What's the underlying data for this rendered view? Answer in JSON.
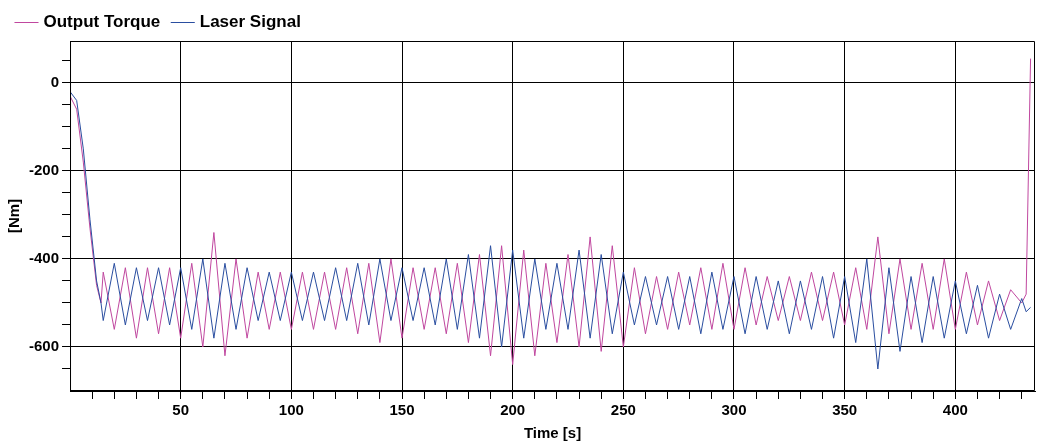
{
  "chart_data": {
    "type": "line",
    "xlabel": "Time [s]",
    "ylabel": "[Nm]",
    "legend": "top left",
    "grid": true,
    "xlim": [
      0,
      436
    ],
    "ylim": [
      -700,
      95
    ],
    "xticks": [
      {
        "value": 10,
        "label": null
      },
      {
        "value": 20,
        "label": null
      },
      {
        "value": 30,
        "label": null
      },
      {
        "value": 40,
        "label": null
      },
      50,
      {
        "value": 60,
        "label": null
      },
      {
        "value": 70,
        "label": null
      },
      {
        "value": 80,
        "label": null
      },
      {
        "value": 90,
        "label": null
      },
      100,
      {
        "value": 110,
        "label": null
      },
      {
        "value": 120,
        "label": null
      },
      {
        "value": 130,
        "label": null
      },
      {
        "value": 140,
        "label": null
      },
      150,
      {
        "value": 160,
        "label": null
      },
      {
        "value": 170,
        "label": null
      },
      {
        "value": 180,
        "label": null
      },
      {
        "value": 190,
        "label": null
      },
      200,
      {
        "value": 210,
        "label": null
      },
      {
        "value": 220,
        "label": null
      },
      {
        "value": 230,
        "label": null
      },
      {
        "value": 240,
        "label": null
      },
      250,
      {
        "value": 260,
        "label": null
      },
      {
        "value": 270,
        "label": null
      },
      {
        "value": 280,
        "label": null
      },
      {
        "value": 290,
        "label": null
      },
      300,
      {
        "value": 310,
        "label": null
      },
      {
        "value": 320,
        "label": null
      },
      {
        "value": 330,
        "label": null
      },
      {
        "value": 340,
        "label": null
      },
      350,
      {
        "value": 360,
        "label": null
      },
      {
        "value": 370,
        "label": null
      },
      {
        "value": 380,
        "label": null
      },
      {
        "value": 390,
        "label": null
      },
      400,
      {
        "value": 410,
        "label": null
      },
      {
        "value": 420,
        "label": null
      },
      {
        "value": 430,
        "label": null
      }
    ],
    "yticks": [
      {
        "value": -650,
        "label": null
      },
      -600,
      {
        "value": -550,
        "label": null
      },
      {
        "value": -500,
        "label": null
      },
      {
        "value": -450,
        "label": null
      },
      -400,
      {
        "value": -350,
        "label": null
      },
      {
        "value": -300,
        "label": null
      },
      {
        "value": -250,
        "label": null
      },
      -200,
      {
        "value": -150,
        "label": null
      },
      {
        "value": -100,
        "label": null
      },
      {
        "value": -50,
        "label": null
      },
      0,
      {
        "value": 50,
        "label": null
      }
    ],
    "series": [
      {
        "name": "Output Torque",
        "color": "#c0479f",
        "x": [
          0,
          3,
          6,
          9,
          12,
          14,
          15,
          20,
          25,
          30,
          35,
          40,
          45,
          50,
          55,
          60,
          65,
          70,
          75,
          80,
          85,
          90,
          95,
          100,
          105,
          110,
          115,
          120,
          125,
          130,
          135,
          140,
          145,
          150,
          155,
          160,
          165,
          170,
          175,
          180,
          185,
          190,
          195,
          200,
          205,
          210,
          215,
          220,
          225,
          230,
          235,
          240,
          245,
          250,
          255,
          260,
          265,
          270,
          275,
          280,
          285,
          290,
          295,
          300,
          305,
          310,
          315,
          320,
          325,
          330,
          335,
          340,
          345,
          350,
          355,
          360,
          365,
          370,
          375,
          380,
          385,
          390,
          395,
          400,
          405,
          410,
          415,
          420,
          425,
          430,
          432,
          434
        ],
        "values": [
          -30,
          -60,
          -180,
          -330,
          -460,
          -500,
          -430,
          -560,
          -420,
          -580,
          -420,
          -570,
          -420,
          -580,
          -410,
          -600,
          -340,
          -620,
          -400,
          -580,
          -430,
          -560,
          -430,
          -560,
          -430,
          -560,
          -430,
          -560,
          -420,
          -570,
          -410,
          -590,
          -400,
          -580,
          -420,
          -560,
          -420,
          -570,
          -410,
          -590,
          -390,
          -620,
          -370,
          -640,
          -380,
          -620,
          -410,
          -590,
          -390,
          -600,
          -350,
          -610,
          -370,
          -600,
          -420,
          -570,
          -440,
          -560,
          -430,
          -550,
          -420,
          -560,
          -410,
          -560,
          -420,
          -550,
          -440,
          -540,
          -440,
          -540,
          -430,
          -540,
          -430,
          -550,
          -420,
          -560,
          -350,
          -570,
          -400,
          -560,
          -410,
          -560,
          -400,
          -560,
          -430,
          -550,
          -450,
          -540,
          -470,
          -500,
          -480,
          55
        ]
      },
      {
        "name": "Laser Signal",
        "color": "#2a4ea0",
        "x": [
          0,
          3,
          6,
          9,
          12,
          14,
          15,
          20,
          25,
          30,
          35,
          40,
          45,
          50,
          55,
          60,
          65,
          70,
          75,
          80,
          85,
          90,
          95,
          100,
          105,
          110,
          115,
          120,
          125,
          130,
          135,
          140,
          145,
          150,
          155,
          160,
          165,
          170,
          175,
          180,
          185,
          190,
          195,
          200,
          205,
          210,
          215,
          220,
          225,
          230,
          235,
          240,
          245,
          250,
          255,
          260,
          265,
          270,
          275,
          280,
          285,
          290,
          295,
          300,
          305,
          310,
          315,
          320,
          325,
          330,
          335,
          340,
          345,
          350,
          355,
          360,
          365,
          370,
          375,
          380,
          385,
          390,
          395,
          400,
          405,
          410,
          415,
          420,
          425,
          430,
          432,
          434
        ],
        "values": [
          -20,
          -40,
          -150,
          -310,
          -450,
          -500,
          -540,
          -410,
          -550,
          -420,
          -540,
          -420,
          -550,
          -420,
          -560,
          -400,
          -580,
          -410,
          -560,
          -420,
          -540,
          -430,
          -540,
          -430,
          -540,
          -430,
          -540,
          -420,
          -540,
          -410,
          -550,
          -400,
          -540,
          -420,
          -540,
          -420,
          -550,
          -400,
          -560,
          -390,
          -580,
          -370,
          -600,
          -380,
          -580,
          -400,
          -560,
          -410,
          -560,
          -380,
          -580,
          -390,
          -570,
          -430,
          -550,
          -440,
          -550,
          -440,
          -560,
          -440,
          -570,
          -430,
          -560,
          -440,
          -570,
          -440,
          -560,
          -450,
          -570,
          -450,
          -560,
          -440,
          -580,
          -440,
          -590,
          -400,
          -650,
          -420,
          -610,
          -440,
          -590,
          -440,
          -580,
          -450,
          -570,
          -460,
          -580,
          -480,
          -560,
          -490,
          -520,
          -510
        ]
      }
    ]
  }
}
